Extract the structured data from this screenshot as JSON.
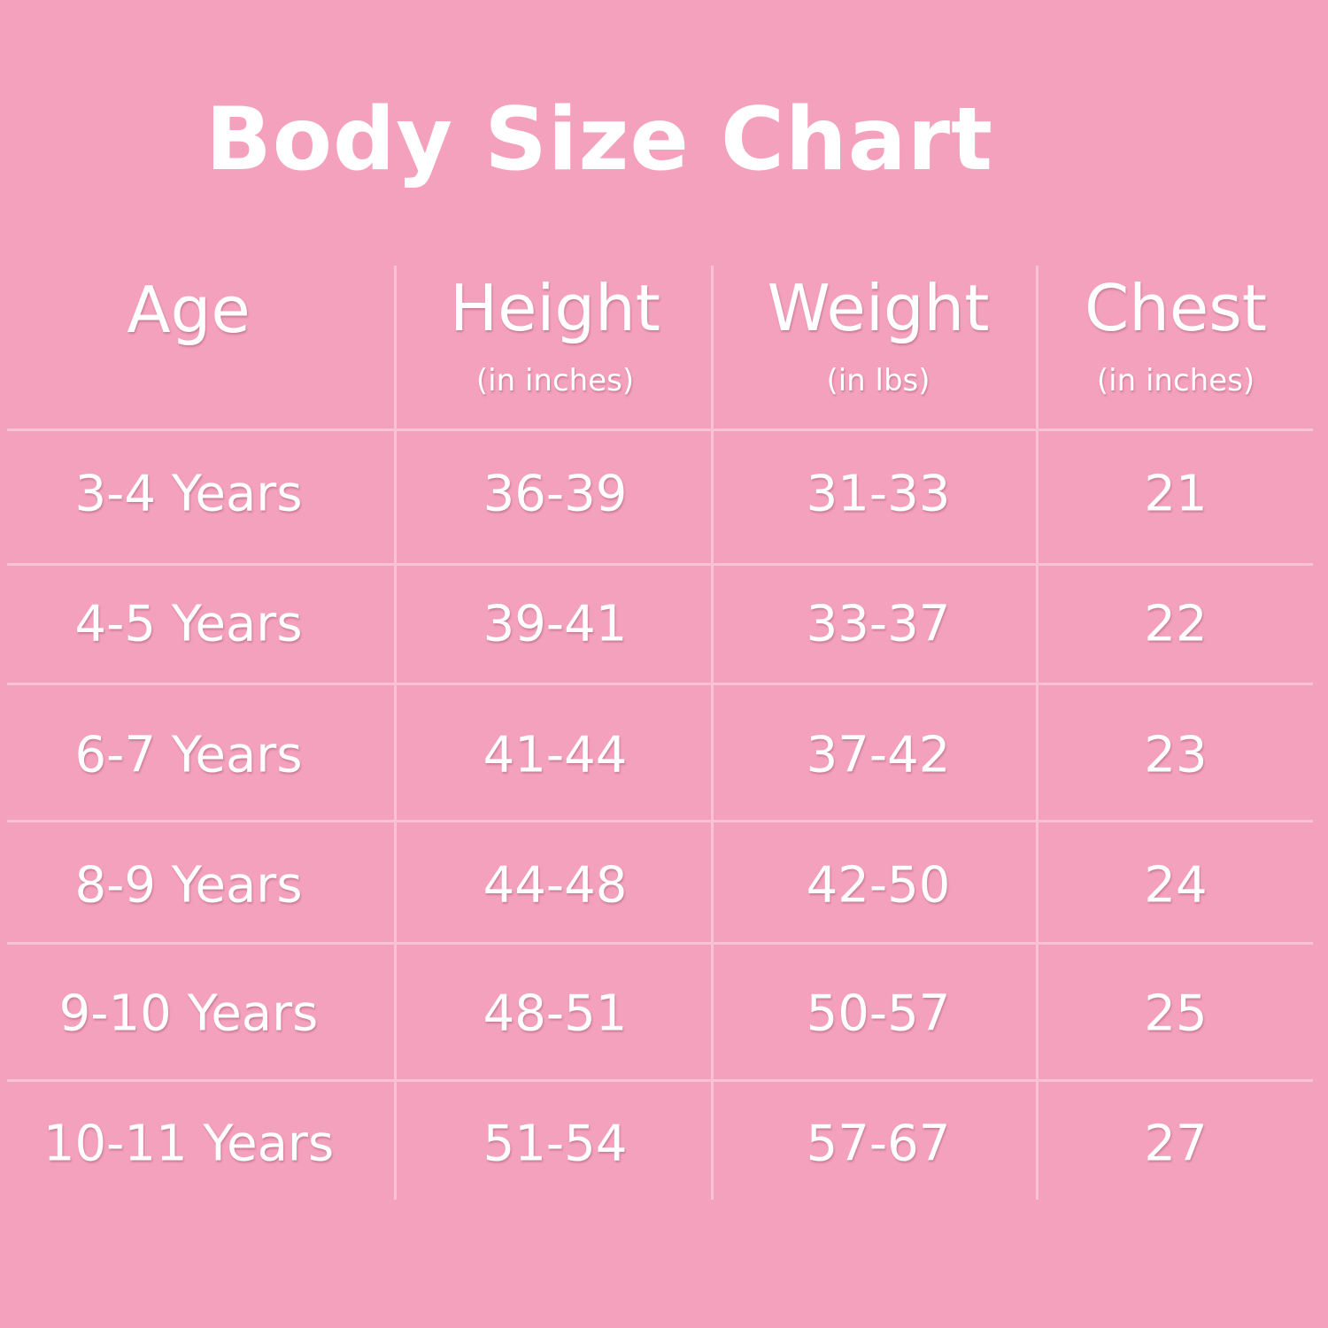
{
  "title": "Body Size Chart",
  "table": {
    "headers": [
      {
        "label": "Age"
      },
      {
        "label": "Height",
        "unit": "(in inches)"
      },
      {
        "label": "Weight",
        "unit": "(in lbs)"
      },
      {
        "label": "Chest",
        "unit": "(in inches)"
      }
    ],
    "rows": [
      [
        "3-4 Years",
        "36-39",
        "31-33",
        "21"
      ],
      [
        "4-5 Years",
        "39-41",
        "33-37",
        "22"
      ],
      [
        "6-7 Years",
        "41-44",
        "37-42",
        "23"
      ],
      [
        "8-9 Years",
        "44-48",
        "42-50",
        "24"
      ],
      [
        "9-10 Years",
        "48-51",
        "50-57",
        "25"
      ],
      [
        "10-11 Years",
        "51-54",
        "57-67",
        "27"
      ]
    ]
  }
}
